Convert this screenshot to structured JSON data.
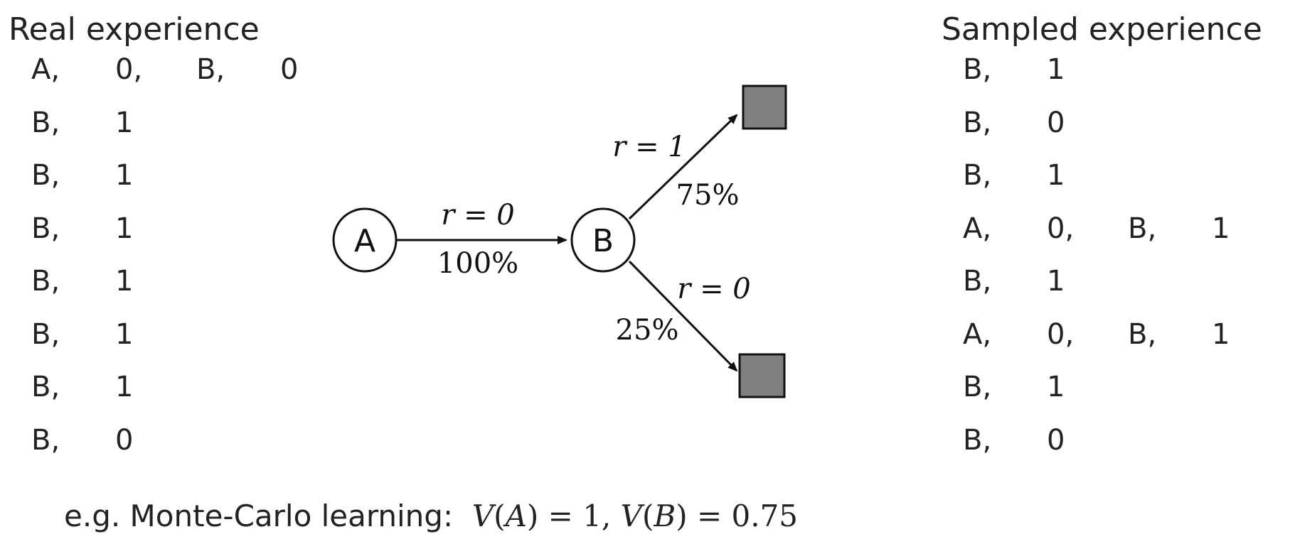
{
  "left_panel": {
    "title": "Real experience",
    "rows": [
      [
        "A,",
        "0,",
        "B,",
        "0"
      ],
      [
        "B,",
        "1"
      ],
      [
        "B,",
        "1"
      ],
      [
        "B,",
        "1"
      ],
      [
        "B,",
        "1"
      ],
      [
        "B,",
        "1"
      ],
      [
        "B,",
        "1"
      ],
      [
        "B,",
        "0"
      ]
    ]
  },
  "right_panel": {
    "title": "Sampled experience",
    "rows": [
      [
        "B,",
        "1"
      ],
      [
        "B,",
        "0"
      ],
      [
        "B,",
        "1"
      ],
      [
        "A,",
        "0,",
        "B,",
        "1"
      ],
      [
        "B,",
        "1"
      ],
      [
        "A,",
        "0,",
        "B,",
        "1"
      ],
      [
        "B,",
        "1"
      ],
      [
        "B,",
        "0"
      ]
    ]
  },
  "diagram": {
    "node_a": "A",
    "node_b": "B",
    "edge_ab_reward": "r = 0",
    "edge_ab_prob": "100%",
    "edge_b_top_reward": "r = 1",
    "edge_b_top_prob": "75%",
    "edge_b_bottom_reward": "r = 0",
    "edge_b_bottom_prob": "25%",
    "terminal_color": "#808080"
  },
  "footer": {
    "prefix": "e.g. Monte-Carlo learning:",
    "va_fn": "V",
    "va_arg": "A",
    "va_value": "1",
    "vb_fn": "V",
    "vb_arg": "B",
    "vb_value": "0.75"
  }
}
